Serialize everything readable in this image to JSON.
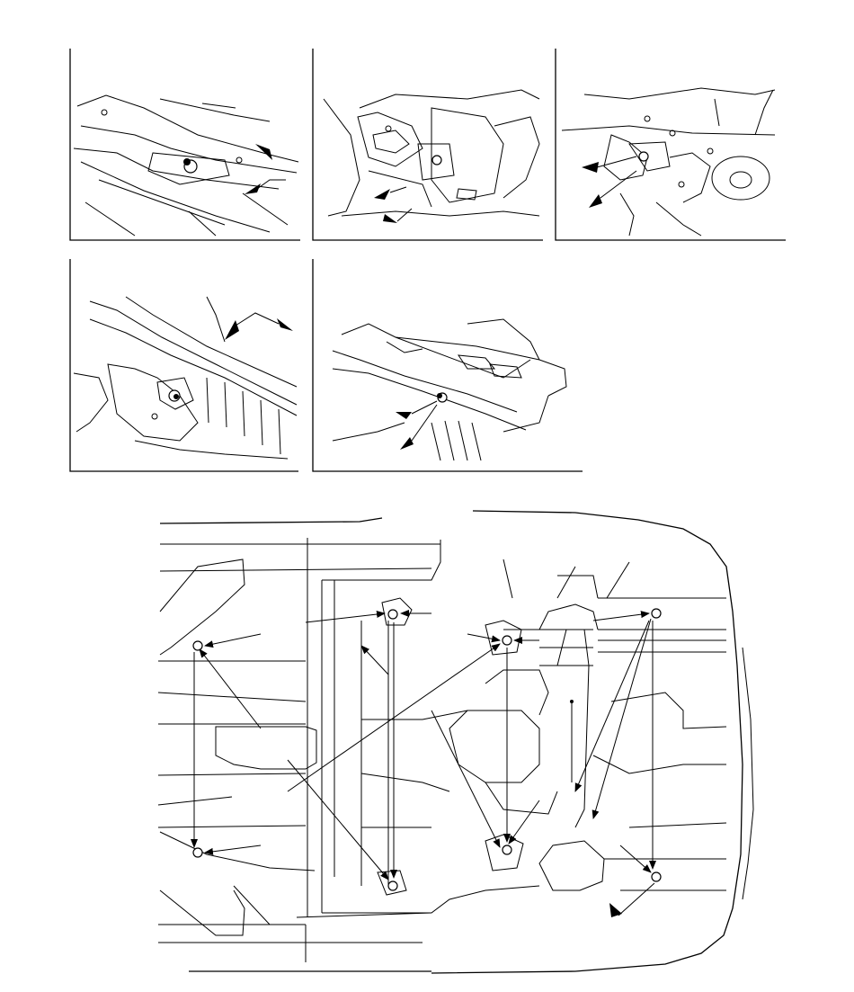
{
  "figure": {
    "panels": [
      {
        "id": "detail-1",
        "points": 2
      },
      {
        "id": "detail-2",
        "points": 2
      },
      {
        "id": "detail-3",
        "points": 2
      },
      {
        "id": "detail-4",
        "points": 2
      },
      {
        "id": "detail-5",
        "points": 2
      }
    ],
    "underbody_view": {
      "mount_points": 8
    },
    "colors": {
      "line": "#000000",
      "background": "#ffffff"
    }
  }
}
